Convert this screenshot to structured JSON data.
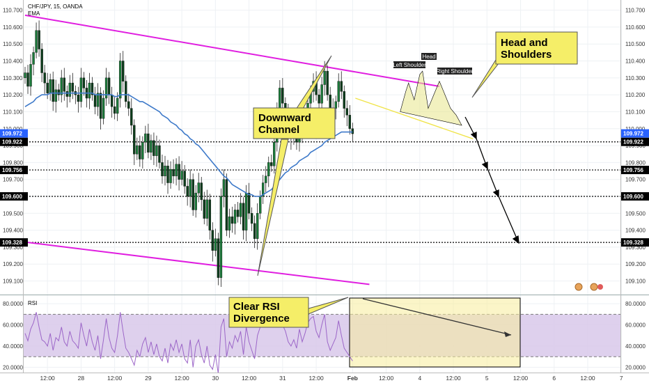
{
  "chart_data": [
    {
      "type": "candlestick",
      "symbol_label": "CHF/JPY, 15, OANDA",
      "indicator_label": "EMA",
      "ylim": [
        109.02,
        110.76
      ],
      "y_ticks": [
        109.1,
        109.2,
        109.3,
        109.4,
        109.5,
        109.6,
        109.7,
        109.8,
        109.9,
        110.0,
        110.1,
        110.2,
        110.3,
        110.4,
        110.5,
        110.6,
        110.7
      ],
      "y_tick_labels": [
        "109.100",
        "109.200",
        "109.300",
        "109.400",
        "109.500",
        "109.600",
        "109.700",
        "109.800",
        "109.900",
        "110.000",
        "110.100",
        "110.200",
        "110.300",
        "110.400",
        "110.500",
        "110.600",
        "110.700"
      ],
      "x_ticks": [
        {
          "idx": 8,
          "label": "12:00"
        },
        {
          "idx": 20,
          "label": "28"
        },
        {
          "idx": 32,
          "label": "12:00"
        },
        {
          "idx": 44,
          "label": "29"
        },
        {
          "idx": 56,
          "label": "12:00"
        },
        {
          "idx": 68,
          "label": "30"
        },
        {
          "idx": 80,
          "label": "12:00"
        },
        {
          "idx": 92,
          "label": "31"
        },
        {
          "idx": 104,
          "label": "12:00"
        },
        {
          "idx": 117,
          "label": "Feb"
        },
        {
          "idx": 129,
          "label": "12:00"
        },
        {
          "idx": 141,
          "label": "4"
        },
        {
          "idx": 153,
          "label": "12:00"
        },
        {
          "idx": 165,
          "label": "5"
        },
        {
          "idx": 177,
          "label": "12:00"
        },
        {
          "idx": 189,
          "label": "6"
        },
        {
          "idx": 201,
          "label": "12:00"
        },
        {
          "idx": 213,
          "label": "7"
        }
      ],
      "close": [
        110.33,
        110.25,
        110.38,
        110.45,
        110.58,
        110.47,
        110.33,
        110.27,
        110.21,
        110.29,
        110.16,
        110.23,
        110.2,
        110.3,
        110.22,
        110.19,
        110.27,
        110.22,
        110.2,
        110.16,
        110.3,
        110.24,
        110.18,
        110.27,
        110.2,
        110.13,
        110.21,
        110.06,
        110.18,
        110.3,
        110.2,
        110.13,
        110.09,
        110.18,
        110.4,
        110.28,
        110.16,
        110.12,
        110.02,
        109.85,
        109.9,
        109.82,
        109.92,
        109.97,
        109.86,
        109.93,
        109.84,
        109.9,
        109.8,
        109.72,
        109.78,
        109.68,
        109.76,
        109.72,
        109.79,
        109.7,
        109.75,
        109.66,
        109.6,
        109.7,
        109.52,
        109.62,
        109.68,
        109.58,
        109.47,
        109.58,
        109.4,
        109.28,
        109.35,
        109.12,
        109.6,
        109.7,
        109.4,
        109.48,
        109.44,
        109.52,
        109.48,
        109.56,
        109.4,
        109.62,
        109.5,
        109.44,
        109.35,
        109.5,
        109.6,
        109.68,
        109.72,
        109.8,
        109.78,
        109.92,
        110.12,
        110.24,
        110.15,
        110.1,
        110.0,
        109.94,
        109.98,
        109.92,
        110.05,
        109.98,
        110.05,
        110.15,
        110.22,
        110.28,
        110.2,
        110.15,
        110.26,
        110.34,
        110.2,
        110.08,
        110.12,
        110.16,
        110.28,
        110.22,
        110.12,
        110.08,
        110.0,
        109.97
      ],
      "ema": [
        110.13,
        110.14,
        110.15,
        110.16,
        110.18,
        110.19,
        110.2,
        110.2,
        110.2,
        110.21,
        110.21,
        110.21,
        110.21,
        110.21,
        110.21,
        110.21,
        110.21,
        110.21,
        110.21,
        110.21,
        110.21,
        110.21,
        110.21,
        110.21,
        110.21,
        110.2,
        110.2,
        110.2,
        110.2,
        110.2,
        110.2,
        110.2,
        110.19,
        110.19,
        110.2,
        110.2,
        110.2,
        110.2,
        110.19,
        110.18,
        110.17,
        110.16,
        110.16,
        110.15,
        110.14,
        110.13,
        110.12,
        110.11,
        110.1,
        110.08,
        110.07,
        110.06,
        110.04,
        110.03,
        110.02,
        110.0,
        109.99,
        109.97,
        109.96,
        109.94,
        109.93,
        109.91,
        109.9,
        109.88,
        109.86,
        109.84,
        109.82,
        109.8,
        109.78,
        109.76,
        109.74,
        109.72,
        109.71,
        109.69,
        109.67,
        109.66,
        109.65,
        109.64,
        109.63,
        109.62,
        109.61,
        109.61,
        109.6,
        109.6,
        109.6,
        109.61,
        109.62,
        109.63,
        109.64,
        109.66,
        109.68,
        109.7,
        109.72,
        109.74,
        109.75,
        109.77,
        109.78,
        109.79,
        109.81,
        109.82,
        109.83,
        109.84,
        109.86,
        109.87,
        109.88,
        109.89,
        109.9,
        109.92,
        109.93,
        109.94,
        109.95,
        109.96,
        109.97,
        109.98,
        109.98,
        109.98,
        109.98,
        109.98
      ],
      "price_labels": [
        {
          "value": 109.972,
          "label": "109.972",
          "color": "#2962ff"
        },
        {
          "value": 109.922,
          "label": "109.922",
          "color": "#000000"
        },
        {
          "value": 109.756,
          "label": "109.756",
          "color": "#000000"
        },
        {
          "value": 109.6,
          "label": "109.600",
          "color": "#000000"
        },
        {
          "value": 109.328,
          "label": "109.328",
          "color": "#000000"
        }
      ],
      "horizontal_levels": [
        109.922,
        109.756,
        109.6,
        109.328
      ],
      "channel_upper": {
        "from": [
          0,
          110.67
        ],
        "to": [
          148,
          110.25
        ]
      },
      "channel_lower": {
        "from": [
          0,
          109.33
        ],
        "to": [
          123,
          109.08
        ]
      },
      "neckline": {
        "from": [
          118,
          110.18
        ],
        "to": [
          160,
          109.94
        ]
      },
      "hs_labels": [
        "Left Shoulder",
        "Head",
        "Right Shoulder"
      ],
      "annotations": [
        "Head and Shoulders",
        "Downward Channel"
      ],
      "colors": {
        "up": "#1b7a3a",
        "down": "#0d3d1c",
        "ema": "#3d79c9",
        "channel": "#e01ee0",
        "neckline": "#f0e44a",
        "callout": "#f5ee68",
        "level_label": "#000000",
        "ema_label": "#2962ff"
      }
    },
    {
      "type": "line",
      "indicator_label": "RSI",
      "ylim": [
        15,
        88
      ],
      "y_ticks": [
        20,
        40,
        60,
        80
      ],
      "y_tick_labels": [
        "20.0000",
        "40.0000",
        "60.0000",
        "80.0000"
      ],
      "band": [
        30,
        70
      ],
      "values": [
        52,
        45,
        56,
        62,
        72,
        58,
        46,
        44,
        40,
        52,
        36,
        48,
        45,
        58,
        44,
        40,
        54,
        45,
        42,
        38,
        62,
        50,
        40,
        56,
        44,
        36,
        50,
        28,
        46,
        66,
        48,
        38,
        34,
        50,
        72,
        54,
        38,
        34,
        28,
        22,
        36,
        30,
        42,
        48,
        34,
        44,
        32,
        42,
        30,
        26,
        38,
        24,
        42,
        36,
        46,
        34,
        42,
        28,
        24,
        46,
        20,
        40,
        46,
        32,
        24,
        40,
        22,
        18,
        32,
        14,
        58,
        66,
        30,
        44,
        38,
        50,
        44,
        54,
        32,
        58,
        44,
        36,
        28,
        50,
        58,
        66,
        70,
        74,
        68,
        80,
        84,
        82,
        60,
        54,
        44,
        40,
        46,
        38,
        56,
        44,
        52,
        62,
        66,
        68,
        54,
        48,
        60,
        70,
        44,
        36,
        42,
        48,
        64,
        50,
        38,
        34,
        30,
        26
      ],
      "annotations": [
        "Clear RSI Divergence"
      ],
      "colors": {
        "line": "#9c66c8",
        "band_fill": "#d8c8ea",
        "highlight": "#f7ec9a"
      }
    }
  ]
}
